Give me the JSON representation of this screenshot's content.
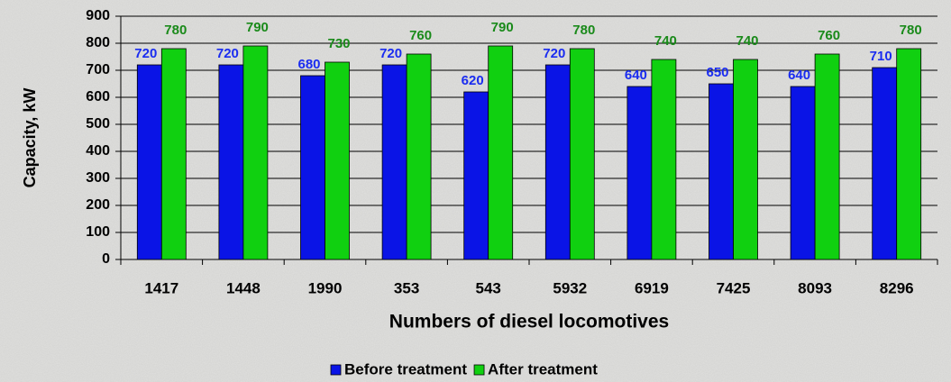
{
  "chart_data": {
    "type": "bar",
    "x_label": "Numbers of diesel locomotives",
    "y_label": "Capacity, kW",
    "categories": [
      "1417",
      "1448",
      "1990",
      "353",
      "543",
      "5932",
      "6919",
      "7425",
      "8093",
      "8296"
    ],
    "series": [
      {
        "name": "Before treatment",
        "color": "#0a14e6",
        "label_color": "#1a2cf0",
        "values": [
          720,
          720,
          680,
          720,
          620,
          720,
          640,
          650,
          640,
          710
        ]
      },
      {
        "name": "After treatment",
        "color": "#10d010",
        "label_color": "#1a8a1a",
        "values": [
          780,
          790,
          730,
          760,
          790,
          780,
          740,
          740,
          760,
          780
        ]
      }
    ],
    "ylim": [
      0,
      900
    ],
    "yticks": [
      0,
      100,
      200,
      300,
      400,
      500,
      600,
      700,
      800,
      900
    ],
    "grid": true,
    "legend": "bottom"
  }
}
